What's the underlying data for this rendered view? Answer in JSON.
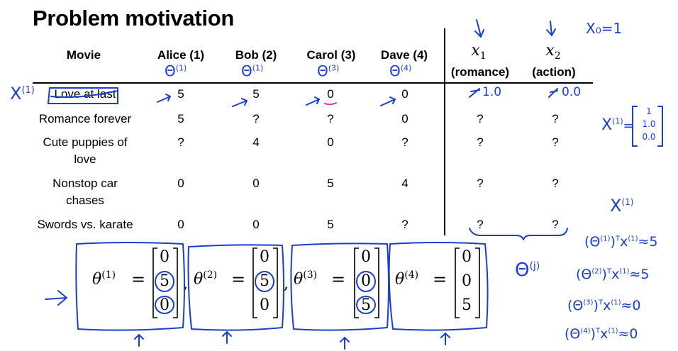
{
  "title": "Problem motivation",
  "table": {
    "headers": {
      "movie": "Movie",
      "alice": "Alice (1)",
      "bob": "Bob (2)",
      "carol": "Carol (3)",
      "dave": "Dave (4)",
      "x1": "x",
      "x1_sub": "1",
      "x1_label": "(romance)",
      "x2": "x",
      "x2_sub": "2",
      "x2_label": "(action)"
    },
    "rows": [
      {
        "movie_line1": "Love at last",
        "movie_line2": "",
        "alice": "5",
        "bob": "5",
        "carol": "0",
        "dave": "0",
        "x1": "",
        "x2": ""
      },
      {
        "movie_line1": "Romance forever",
        "movie_line2": "",
        "alice": "5",
        "bob": "?",
        "carol": "?",
        "dave": "0",
        "x1": "?",
        "x2": "?"
      },
      {
        "movie_line1": "Cute puppies of",
        "movie_line2": "love",
        "alice": "?",
        "bob": "4",
        "carol": "0",
        "dave": "?",
        "x1": "?",
        "x2": "?"
      },
      {
        "movie_line1": "Nonstop car",
        "movie_line2": "chases",
        "alice": "0",
        "bob": "0",
        "carol": "5",
        "dave": "4",
        "x1": "?",
        "x2": "?"
      },
      {
        "movie_line1": "Swords vs. karate",
        "movie_line2": "",
        "alice": "0",
        "bob": "0",
        "carol": "5",
        "dave": "?",
        "x1": "?",
        "x2": "?"
      }
    ]
  },
  "thetas": [
    {
      "label": "θ",
      "sup": "(1)",
      "eq": "=",
      "values": [
        "0",
        "5",
        "0"
      ],
      "comma": ","
    },
    {
      "label": "θ",
      "sup": "(2)",
      "eq": "=",
      "values": [
        "0",
        "5",
        "0"
      ],
      "comma": ","
    },
    {
      "label": "θ",
      "sup": "(3)",
      "eq": "=",
      "values": [
        "0",
        "0",
        "5"
      ],
      "comma": ","
    },
    {
      "label": "θ",
      "sup": "(4)",
      "eq": "=",
      "values": [
        "0",
        "0",
        "5"
      ],
      "comma": ""
    }
  ],
  "annotations": {
    "x0": "X₀=1",
    "x1_overwrite": "1.0",
    "x2_overwrite": "0.0",
    "x_i_left": "X",
    "x_i_left_sup": "(1)",
    "theta_hdr_1": "Θ",
    "theta_hdr_1_sup": "(1)",
    "theta_hdr_2": "Θ",
    "theta_hdr_2_sup": "(1)",
    "theta_hdr_3": "Θ",
    "theta_hdr_3_sup": "(3)",
    "theta_hdr_4": "Θ",
    "theta_hdr_4_sup": "(4)",
    "x1_vector_label": "X",
    "x1_vector_sup": "(1)",
    "x1_vector_eq": "=",
    "x1_vector_values": [
      "1",
      "1.0",
      "0.0"
    ],
    "x1_right": "X",
    "x1_right_sup": "(1)",
    "theta_j": "Θ",
    "theta_j_sup": "(j)",
    "products": [
      {
        "text": "(Θ",
        "sup1": "(1)",
        "mid": ")",
        "sup2": "T",
        "x": "x",
        "sup3": "(1)",
        "approx": "≈5"
      },
      {
        "text": "(Θ",
        "sup1": "(2)",
        "mid": ")",
        "sup2": "T",
        "x": "x",
        "sup3": "(1)",
        "approx": "≈5"
      },
      {
        "text": "(Θ",
        "sup1": "(3)",
        "mid": ")",
        "sup2": "T",
        "x": "x",
        "sup3": "(1)",
        "approx": "≈0"
      },
      {
        "text": "(Θ",
        "sup1": "(4)",
        "mid": ")",
        "sup2": "T",
        "x": "x",
        "sup3": "(1)",
        "approx": "≈0"
      }
    ]
  },
  "colors": {
    "ink": "#1a3fcf",
    "underline": "#d6339b"
  }
}
